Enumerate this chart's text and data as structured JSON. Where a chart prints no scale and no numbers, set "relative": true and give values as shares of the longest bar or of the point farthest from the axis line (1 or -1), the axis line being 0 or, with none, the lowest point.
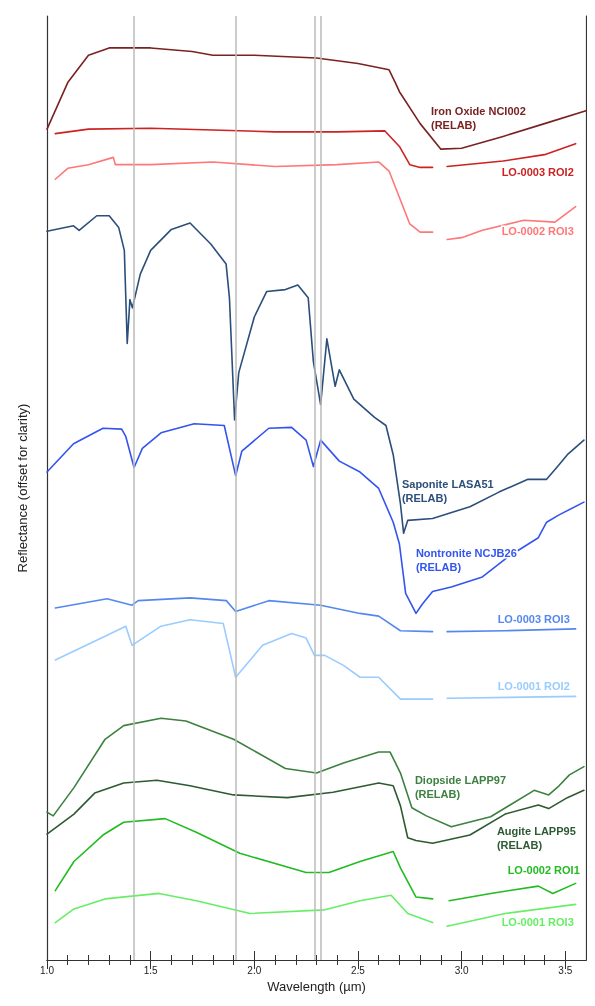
{
  "chart_data": {
    "type": "line",
    "relative": true,
    "xlabel": "Wavelength (µm)",
    "ylabel": "Reflectance (offset for clarity)",
    "xlim": [
      1.0,
      3.6
    ],
    "xticks": [
      {
        "value": 1,
        "label": "1.0"
      },
      1.5,
      {
        "value": 2,
        "label": "2.0"
      },
      2.5,
      {
        "value": 3,
        "label": "3.0"
      },
      3.5
    ],
    "legend": false,
    "grid": false,
    "marker": "none",
    "line_style": "solid",
    "ref_lines": [
      {
        "axis": "x",
        "value": 1.42,
        "color": "#bbbbbb"
      },
      {
        "axis": "x",
        "value": 1.91,
        "color": "#bbbbbb"
      },
      {
        "axis": "x",
        "value": 2.285,
        "color": "#bbbbbb"
      },
      {
        "axis": "x",
        "value": 2.32,
        "color": "#bbbbbb"
      }
    ],
    "series": [
      {
        "name": "Iron Oxide NCI002 (RELAB)",
        "color": "#7a2222",
        "x": [
          1.0,
          1.1,
          1.2,
          1.3,
          1.5,
          1.7,
          1.8,
          2.0,
          2.3,
          2.5,
          2.65,
          2.68,
          2.7,
          2.8,
          2.9,
          3.0,
          3.2,
          3.4,
          3.6
        ],
        "values": [
          0.911,
          0.962,
          0.992,
          1.0,
          1.0,
          0.996,
          0.992,
          0.992,
          0.989,
          0.983,
          0.976,
          0.962,
          0.952,
          0.917,
          0.889,
          0.89,
          0.903,
          0.917,
          0.931
        ]
      },
      {
        "name": "LO-0003 ROI2",
        "color": "#cc2222",
        "x": [
          1.04,
          1.2,
          1.5,
          1.8,
          2.1,
          2.4,
          2.63,
          2.7,
          2.75,
          2.8,
          2.86,
          2.9,
          2.93,
          3.2,
          3.4,
          3.55
        ],
        "values": [
          0.906,
          0.911,
          0.912,
          0.91,
          0.908,
          0.908,
          0.909,
          0.892,
          0.872,
          0.869,
          0.869,
          null,
          0.87,
          0.876,
          0.883,
          0.895
        ]
      },
      {
        "name": "LO-0002 ROI3",
        "color": "#ff7777",
        "x": [
          1.04,
          1.1,
          1.2,
          1.32,
          1.33,
          1.5,
          1.8,
          2.1,
          2.4,
          2.6,
          2.65,
          2.7,
          2.75,
          2.8,
          2.86,
          2.9,
          2.93,
          3.0,
          3.1,
          3.3,
          3.45,
          3.55
        ],
        "values": [
          0.856,
          0.868,
          0.872,
          0.88,
          0.872,
          0.872,
          0.875,
          0.87,
          0.872,
          0.875,
          0.865,
          0.836,
          0.807,
          0.798,
          0.798,
          null,
          0.79,
          0.792,
          0.8,
          0.811,
          0.809,
          0.826
        ]
      },
      {
        "name": "Saponite LASA51 (RELAB)",
        "color": "#2b4f7a",
        "x": [
          1.0,
          1.128,
          1.155,
          1.24,
          1.3,
          1.346,
          1.373,
          1.387,
          1.4,
          1.412,
          1.45,
          1.5,
          1.6,
          1.69,
          1.79,
          1.864,
          1.88,
          1.905,
          1.925,
          2.0,
          2.06,
          2.15,
          2.21,
          2.26,
          2.285,
          2.32,
          2.35,
          2.39,
          2.41,
          2.48,
          2.58,
          2.635,
          2.67,
          2.705,
          2.72,
          2.74,
          2.86,
          3.04,
          3.18,
          3.32,
          3.41,
          3.47,
          3.51,
          3.59
        ],
        "values": [
          0.799,
          0.805,
          0.8,
          0.816,
          0.816,
          0.803,
          0.778,
          0.676,
          0.724,
          0.715,
          0.752,
          0.778,
          0.801,
          0.808,
          0.785,
          0.763,
          0.726,
          0.592,
          0.644,
          0.705,
          0.733,
          0.735,
          0.74,
          0.726,
          0.656,
          0.609,
          0.681,
          0.629,
          0.647,
          0.615,
          0.595,
          0.586,
          0.554,
          0.5,
          0.468,
          0.482,
          0.484,
          0.497,
          0.513,
          0.527,
          0.527,
          0.543,
          0.554,
          0.57
        ]
      },
      {
        "name": "Nontronite NCJB26 (RELAB)",
        "color": "#3355ee",
        "x": [
          1.0,
          1.128,
          1.27,
          1.36,
          1.38,
          1.42,
          1.46,
          1.55,
          1.71,
          1.855,
          1.91,
          1.94,
          2.07,
          2.18,
          2.25,
          2.285,
          2.32,
          2.41,
          2.51,
          2.6,
          2.67,
          2.7,
          2.73,
          2.78,
          2.81,
          2.86,
          2.95,
          3.1,
          3.23,
          3.37,
          3.41,
          3.47,
          3.59
        ],
        "values": [
          0.535,
          0.566,
          0.583,
          0.582,
          0.574,
          0.54,
          0.561,
          0.578,
          0.588,
          0.586,
          0.531,
          0.558,
          0.583,
          0.584,
          0.57,
          0.541,
          0.57,
          0.547,
          0.535,
          0.517,
          0.48,
          0.456,
          0.402,
          0.38,
          0.39,
          0.404,
          0.409,
          0.42,
          0.443,
          0.463,
          0.48,
          0.488,
          0.502
        ]
      },
      {
        "name": "LO-0003 ROI3",
        "color": "#5588ee",
        "x": [
          1.04,
          1.29,
          1.41,
          1.44,
          1.69,
          1.865,
          1.91,
          2.07,
          2.32,
          2.51,
          2.6,
          2.705,
          2.86,
          2.9,
          2.93,
          3.21,
          3.55
        ],
        "values": [
          0.386,
          0.396,
          0.389,
          0.394,
          0.397,
          0.394,
          0.382,
          0.394,
          0.389,
          0.38,
          0.377,
          0.361,
          0.36,
          null,
          0.36,
          0.361,
          0.363
        ]
      },
      {
        "name": "LO-0001 ROI2",
        "color": "#99ccff",
        "x": [
          1.04,
          1.28,
          1.38,
          1.41,
          1.55,
          1.69,
          1.85,
          1.91,
          2.04,
          2.18,
          2.25,
          2.29,
          2.34,
          2.43,
          2.51,
          2.6,
          2.705,
          2.86,
          2.9,
          2.93,
          3.55
        ],
        "values": [
          0.329,
          0.355,
          0.366,
          0.345,
          0.366,
          0.373,
          0.369,
          0.31,
          0.345,
          0.358,
          0.353,
          0.334,
          0.334,
          0.323,
          0.31,
          0.31,
          0.286,
          0.286,
          null,
          0.287,
          0.289
        ]
      },
      {
        "name": "Diopside LAPP97 (RELAB)",
        "color": "#3d8040",
        "x": [
          1.0,
          1.03,
          1.13,
          1.28,
          1.37,
          1.55,
          1.67,
          1.9,
          2.15,
          2.3,
          2.43,
          2.6,
          2.655,
          2.705,
          2.76,
          2.83,
          2.95,
          3.14,
          3.35,
          3.42,
          3.47,
          3.52,
          3.59
        ],
        "values": [
          0.162,
          0.158,
          0.189,
          0.242,
          0.257,
          0.265,
          0.262,
          0.242,
          0.21,
          0.205,
          0.216,
          0.228,
          0.228,
          0.205,
          0.167,
          0.158,
          0.146,
          0.157,
          0.186,
          0.181,
          0.191,
          0.203,
          0.212
        ]
      },
      {
        "name": "Augite LAPP95 (RELAB)",
        "color": "#2e5a33",
        "x": [
          1.0,
          1.13,
          1.23,
          1.37,
          1.53,
          1.69,
          1.9,
          2.16,
          2.38,
          2.6,
          2.67,
          2.705,
          2.74,
          2.78,
          2.86,
          3.04,
          3.21,
          3.37,
          3.42,
          3.51,
          3.59
        ],
        "values": [
          0.138,
          0.16,
          0.183,
          0.194,
          0.197,
          0.191,
          0.181,
          0.178,
          0.184,
          0.194,
          0.191,
          0.169,
          0.134,
          0.131,
          0.128,
          0.137,
          0.16,
          0.17,
          0.166,
          0.178,
          0.186
        ]
      },
      {
        "name": "LO-0002 ROI1",
        "color": "#22bb22",
        "x": [
          1.04,
          1.13,
          1.27,
          1.37,
          1.57,
          1.72,
          1.93,
          2.25,
          2.36,
          2.51,
          2.67,
          2.705,
          2.78,
          2.86,
          2.9,
          2.94,
          3.14,
          3.37,
          3.44,
          3.55
        ],
        "values": [
          0.076,
          0.108,
          0.137,
          0.151,
          0.155,
          0.14,
          0.117,
          0.096,
          0.096,
          0.108,
          0.119,
          0.101,
          0.069,
          0.067,
          null,
          0.065,
          0.073,
          0.081,
          0.073,
          0.084
        ]
      },
      {
        "name": "LO-0001 ROI3",
        "color": "#66ee66",
        "x": [
          1.04,
          1.13,
          1.28,
          1.54,
          1.72,
          1.98,
          2.34,
          2.51,
          2.66,
          2.74,
          2.86,
          2.9,
          2.93,
          3.21,
          3.55
        ],
        "values": [
          0.041,
          0.056,
          0.067,
          0.073,
          0.065,
          0.051,
          0.055,
          0.065,
          0.071,
          0.051,
          0.041,
          null,
          0.037,
          0.051,
          0.061
        ]
      }
    ]
  }
}
